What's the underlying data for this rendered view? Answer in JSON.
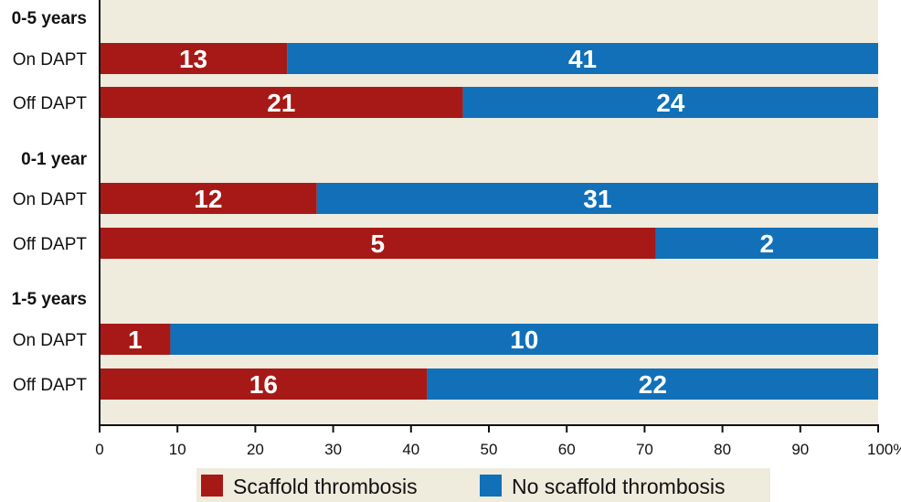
{
  "chart_data": {
    "type": "bar",
    "orientation": "horizontal",
    "stacked": true,
    "normalized_percent": true,
    "title": "",
    "xlabel": "",
    "ylabel": "",
    "xlim": [
      0,
      100
    ],
    "x_ticks": [
      "0",
      "10",
      "20",
      "30",
      "40",
      "50",
      "60",
      "70",
      "80",
      "90",
      "100%"
    ],
    "grid": false,
    "legend_position": "bottom",
    "colors": {
      "background": "#efebdd",
      "scaffold_thrombosis": "#a71916",
      "no_scaffold_thrombosis": "#1170b8"
    },
    "groups": [
      {
        "label": "0-5 years",
        "rows": [
          {
            "label": "On DAPT",
            "scaffold_thrombosis": 13,
            "no_scaffold_thrombosis": 41
          },
          {
            "label": "Off DAPT",
            "scaffold_thrombosis": 21,
            "no_scaffold_thrombosis": 24
          }
        ]
      },
      {
        "label": "0-1 year",
        "rows": [
          {
            "label": "On DAPT",
            "scaffold_thrombosis": 12,
            "no_scaffold_thrombosis": 31
          },
          {
            "label": "Off DAPT",
            "scaffold_thrombosis": 5,
            "no_scaffold_thrombosis": 2
          }
        ]
      },
      {
        "label": "1-5 years",
        "rows": [
          {
            "label": "On DAPT",
            "scaffold_thrombosis": 1,
            "no_scaffold_thrombosis": 10
          },
          {
            "label": "Off DAPT",
            "scaffold_thrombosis": 16,
            "no_scaffold_thrombosis": 22
          }
        ]
      }
    ],
    "series": [
      {
        "name": "Scaffold thrombosis",
        "key": "scaffold_thrombosis"
      },
      {
        "name": "No scaffold thrombosis",
        "key": "no_scaffold_thrombosis"
      }
    ]
  }
}
